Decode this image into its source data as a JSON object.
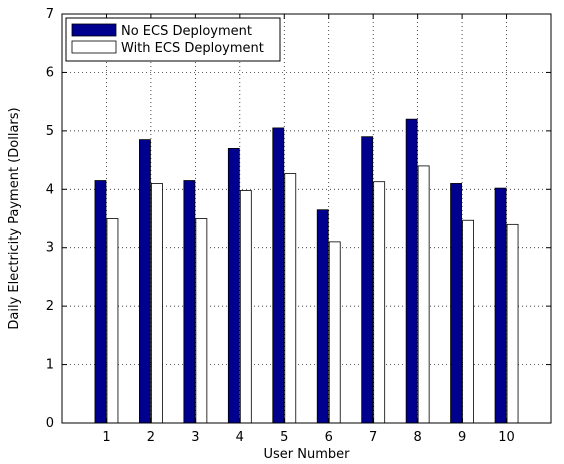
{
  "chart_data": {
    "type": "bar",
    "title": "",
    "xlabel": "User Number",
    "ylabel": "Daily Electricity Payment (Dollars)",
    "categories": [
      "1",
      "2",
      "3",
      "4",
      "5",
      "6",
      "7",
      "8",
      "9",
      "10"
    ],
    "series": [
      {
        "name": "No ECS Deployment",
        "color": "#00008f",
        "values": [
          4.15,
          4.85,
          4.15,
          4.7,
          5.05,
          3.65,
          4.9,
          5.2,
          4.1,
          4.02
        ]
      },
      {
        "name": "With ECS Deployment",
        "color": "#ffffff",
        "values": [
          3.5,
          4.1,
          3.5,
          3.98,
          4.27,
          3.1,
          4.13,
          4.4,
          3.47,
          3.4
        ]
      }
    ],
    "ylim": [
      0,
      7
    ],
    "yticks": [
      "0",
      "1",
      "2",
      "3",
      "4",
      "5",
      "6",
      "7"
    ],
    "grid": true,
    "legend_position": "top-left"
  }
}
